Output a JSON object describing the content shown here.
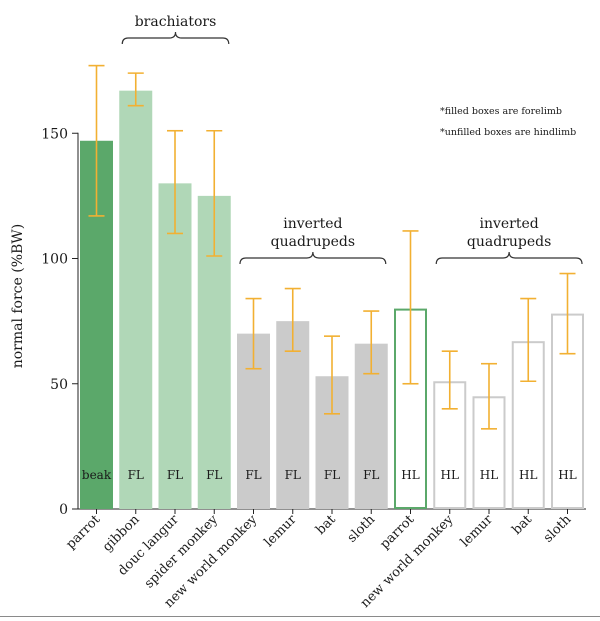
{
  "chart_data": {
    "type": "bar",
    "ylabel": "normal force (%BW)",
    "ylim": [
      0,
      185
    ],
    "yticks": [
      0,
      50,
      100,
      150
    ],
    "bars": [
      {
        "category": "parrot",
        "value": 147,
        "err_low": 117,
        "err_high": 177,
        "inner_label": "beak",
        "style": "filled",
        "color": "#5ba86a"
      },
      {
        "category": "gibbon",
        "value": 167,
        "err_low": 161,
        "err_high": 174,
        "inner_label": "FL",
        "style": "filled",
        "color": "#b0d7b7"
      },
      {
        "category": "douc langur",
        "value": 130,
        "err_low": 110,
        "err_high": 151,
        "inner_label": "FL",
        "style": "filled",
        "color": "#b0d7b7"
      },
      {
        "category": "spider monkey",
        "value": 125,
        "err_low": 101,
        "err_high": 151,
        "inner_label": "FL",
        "style": "filled",
        "color": "#b0d7b7"
      },
      {
        "category": "new world monkey",
        "value": 70,
        "err_low": 56,
        "err_high": 84,
        "inner_label": "FL",
        "style": "filled",
        "color": "#cbcbcb"
      },
      {
        "category": "lemur",
        "value": 75,
        "err_low": 63,
        "err_high": 88,
        "inner_label": "FL",
        "style": "filled",
        "color": "#cbcbcb"
      },
      {
        "category": "bat",
        "value": 53,
        "err_low": 38,
        "err_high": 69,
        "inner_label": "FL",
        "style": "filled",
        "color": "#cbcbcb"
      },
      {
        "category": "sloth",
        "value": 66,
        "err_low": 54,
        "err_high": 79,
        "inner_label": "FL",
        "style": "filled",
        "color": "#cbcbcb"
      },
      {
        "category": "parrot",
        "value": 80,
        "err_low": 50,
        "err_high": 111,
        "inner_label": "HL",
        "style": "outline",
        "color": "#5ba86a"
      },
      {
        "category": "new world monkey",
        "value": 51,
        "err_low": 40,
        "err_high": 63,
        "inner_label": "HL",
        "style": "outline",
        "color": "#cbcbcb"
      },
      {
        "category": "lemur",
        "value": 45,
        "err_low": 32,
        "err_high": 58,
        "inner_label": "HL",
        "style": "outline",
        "color": "#cbcbcb"
      },
      {
        "category": "bat",
        "value": 67,
        "err_low": 51,
        "err_high": 84,
        "inner_label": "HL",
        "style": "outline",
        "color": "#cbcbcb"
      },
      {
        "category": "sloth",
        "value": 78,
        "err_low": 62,
        "err_high": 94,
        "inner_label": "HL",
        "style": "outline",
        "color": "#cbcbcb"
      }
    ],
    "groups": [
      {
        "label_lines": [
          "brachiators"
        ],
        "from_bar": 1,
        "to_bar": 3
      },
      {
        "label_lines": [
          "inverted",
          "quadrupeds"
        ],
        "from_bar": 4,
        "to_bar": 7
      },
      {
        "label_lines": [
          "inverted",
          "quadrupeds"
        ],
        "from_bar": 9,
        "to_bar": 12
      }
    ],
    "notes": [
      "*filled boxes are forelimb",
      "*unfilled boxes are hindlimb"
    ],
    "error_bar_color": "#f2b032",
    "grid": false
  }
}
